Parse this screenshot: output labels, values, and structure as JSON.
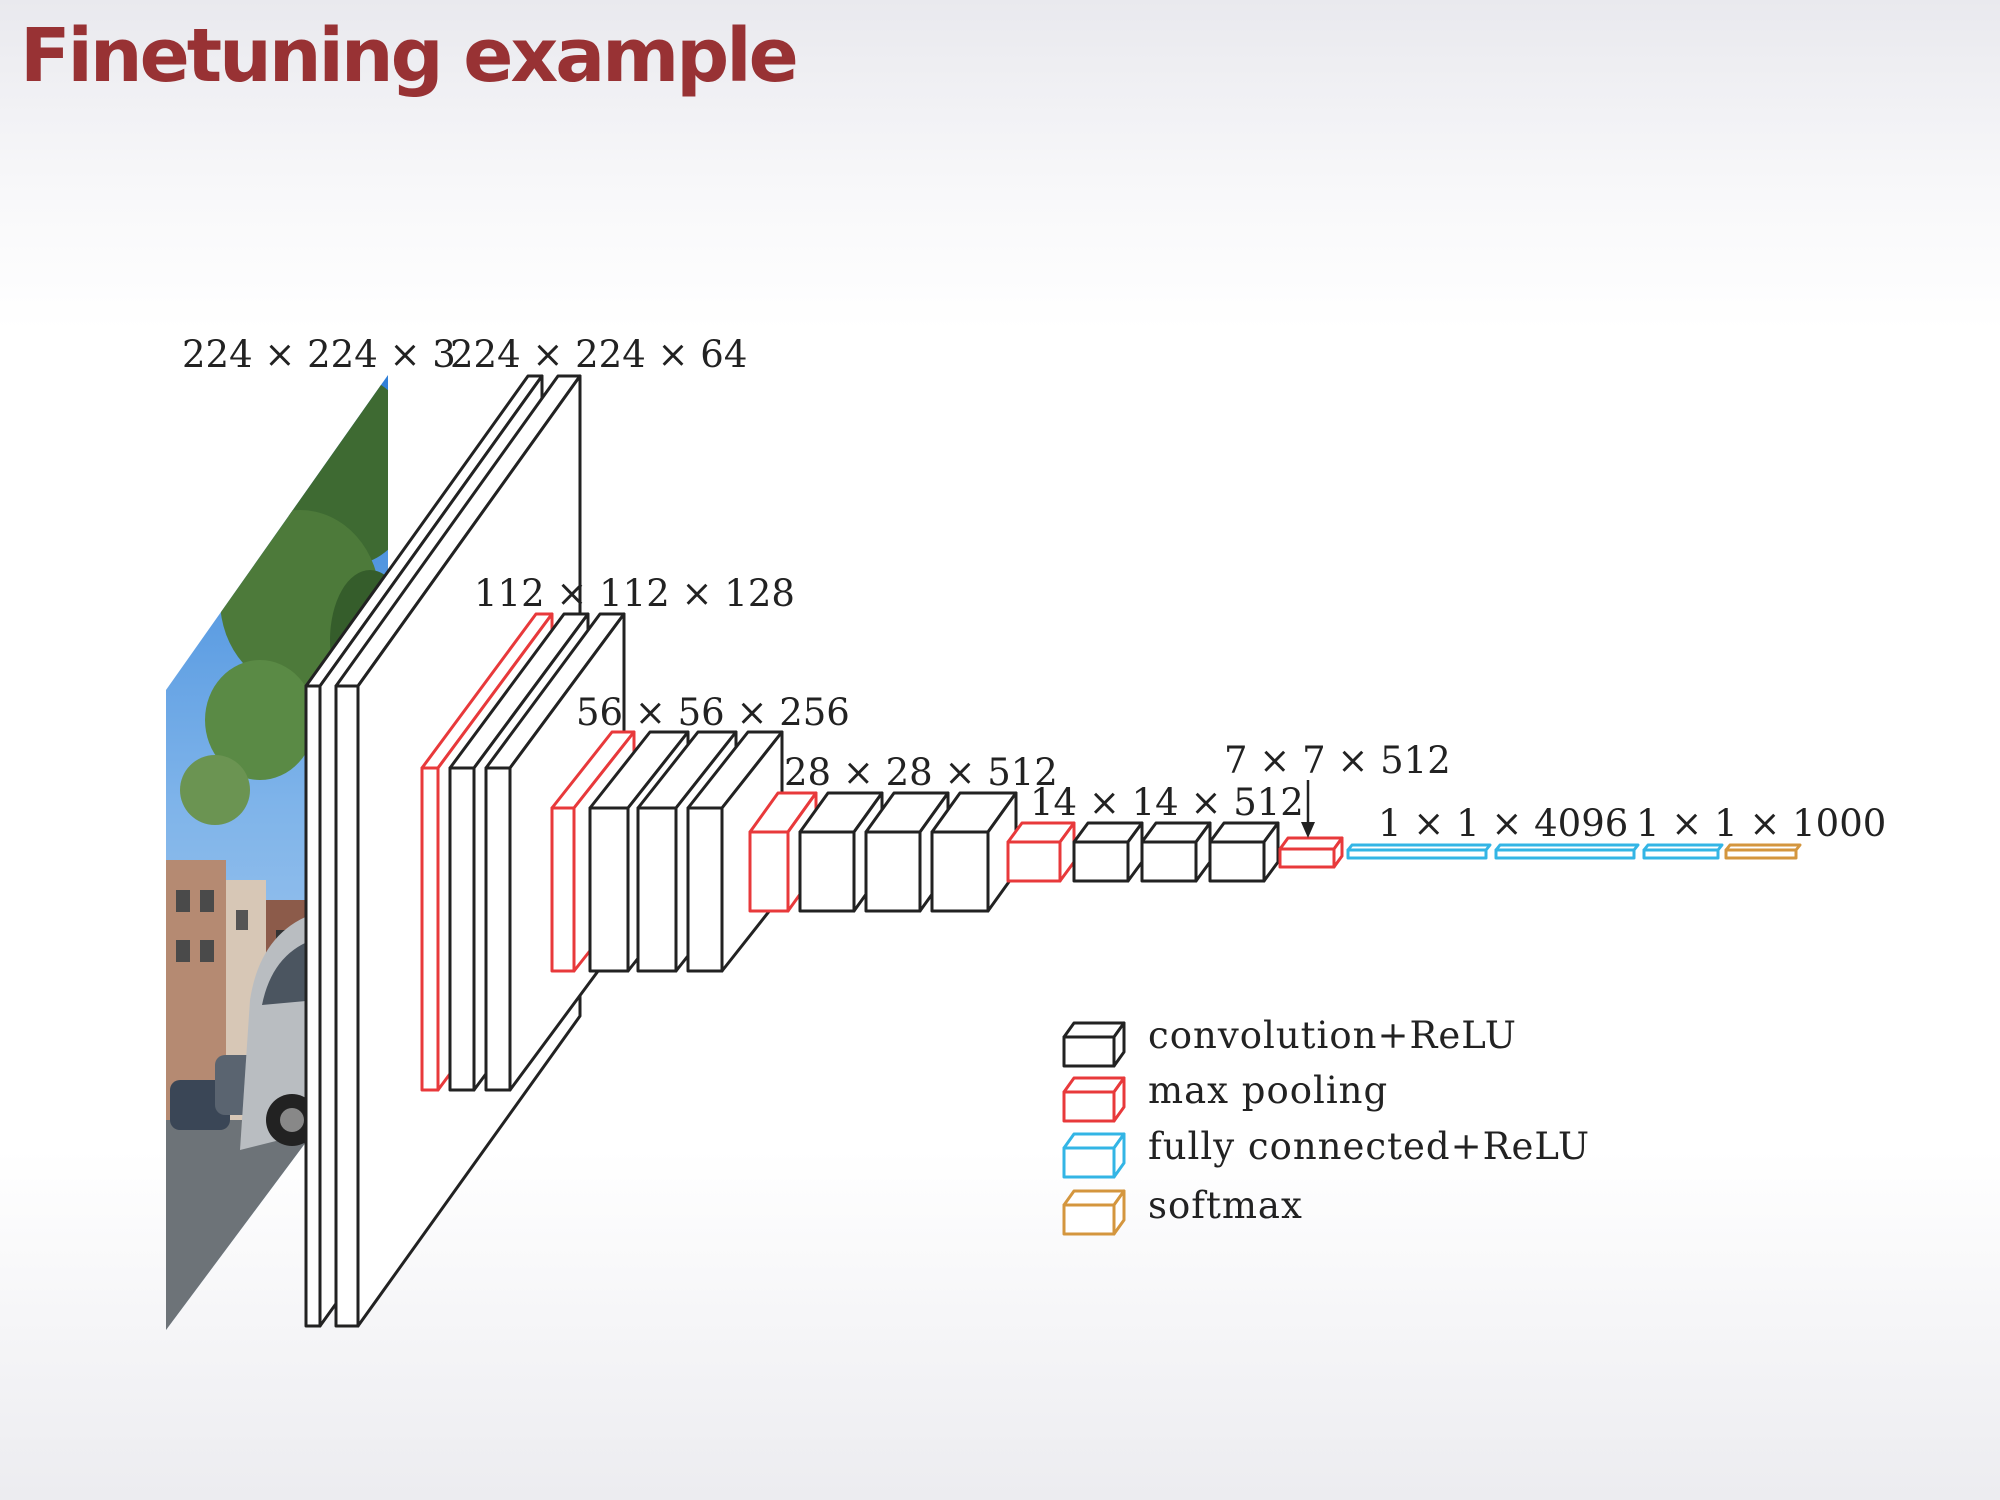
{
  "slide": {
    "title": "Finetuning example"
  },
  "input_image": {
    "label": "224 × 224 × 3",
    "description": "street scene with cars and trees"
  },
  "stages": [
    {
      "id": "block1",
      "label": "224 × 224 × 64",
      "layers": [
        "convolution+ReLU",
        "convolution+ReLU"
      ]
    },
    {
      "id": "block2",
      "label": "112 × 112 × 128",
      "layers": [
        "max pooling",
        "convolution+ReLU",
        "convolution+ReLU"
      ]
    },
    {
      "id": "block3",
      "label": "56 × 56 × 256",
      "layers": [
        "max pooling",
        "convolution+ReLU",
        "convolution+ReLU",
        "convolution+ReLU"
      ]
    },
    {
      "id": "block4",
      "label": "28 × 28 × 512",
      "layers": [
        "max pooling",
        "convolution+ReLU",
        "convolution+ReLU",
        "convolution+ReLU"
      ]
    },
    {
      "id": "block5",
      "label": "14 × 14 × 512",
      "layers": [
        "max pooling",
        "convolution+ReLU",
        "convolution+ReLU",
        "convolution+ReLU"
      ]
    },
    {
      "id": "pool5",
      "label": "7 × 7 × 512",
      "layers": [
        "max pooling"
      ]
    },
    {
      "id": "fc",
      "label": "1 × 1 × 4096",
      "layers": [
        "fully connected+ReLU",
        "fully connected+ReLU"
      ]
    },
    {
      "id": "out",
      "label": "1 × 1 × 1000",
      "layers": [
        "fully connected+ReLU",
        "softmax"
      ]
    }
  ],
  "legend": {
    "items": [
      {
        "label": "convolution+ReLU",
        "color": "#222222"
      },
      {
        "label": "max pooling",
        "color": "#e8393b"
      },
      {
        "label": "fully connected+ReLU",
        "color": "#33b5e5"
      },
      {
        "label": "softmax",
        "color": "#d4963e"
      }
    ]
  },
  "colors": {
    "conv": "#222222",
    "pool": "#e8393b",
    "fc": "#33b5e5",
    "softmax": "#d4963e",
    "title": "#983234"
  }
}
